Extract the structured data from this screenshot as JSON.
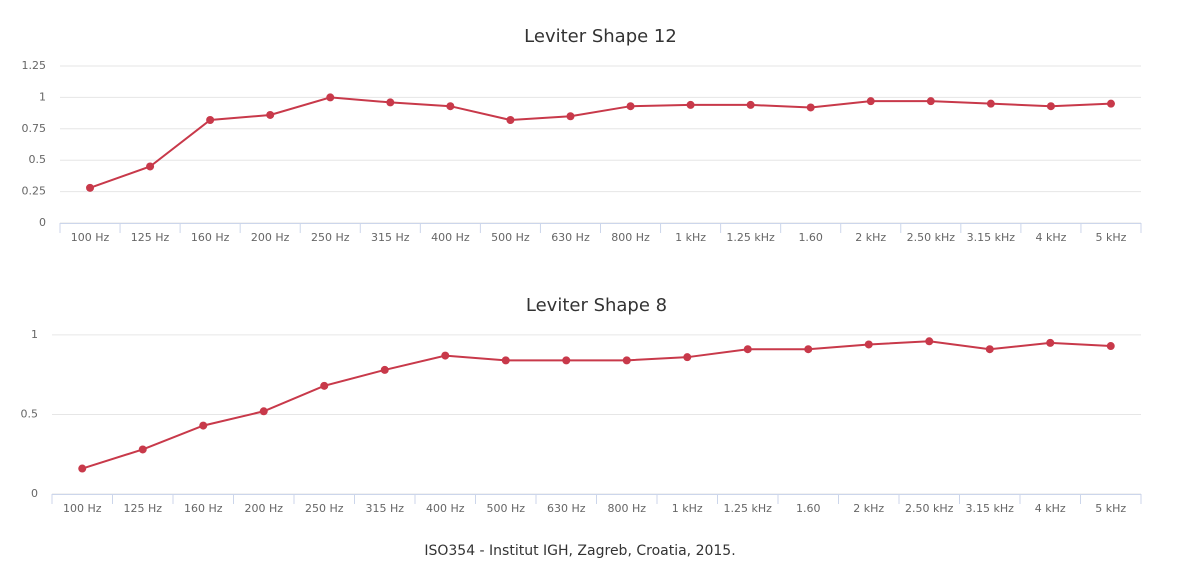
{
  "chart_data": [
    {
      "type": "line",
      "title": "Leviter Shape 12",
      "categories": [
        "100 Hz",
        "125 Hz",
        "160 Hz",
        "200 Hz",
        "250 Hz",
        "315 Hz",
        "400 Hz",
        "500 Hz",
        "630 Hz",
        "800 Hz",
        "1 kHz",
        "1.25 kHz",
        "1.60",
        "2 kHz",
        "2.50 kHz",
        "3.15 kHz",
        "4 kHz",
        "5 kHz"
      ],
      "series": [
        {
          "color": "#c8394a",
          "values": [
            0.28,
            0.45,
            0.82,
            0.86,
            1.0,
            0.96,
            0.93,
            0.82,
            0.85,
            0.93,
            0.94,
            0.94,
            0.92,
            0.97,
            0.97,
            0.95,
            0.93,
            0.95
          ]
        }
      ],
      "ylim": [
        0,
        1.25
      ],
      "yticks": [
        0,
        0.25,
        0.5,
        0.75,
        1,
        1.25
      ],
      "grid": true
    },
    {
      "type": "line",
      "title": "Leviter Shape 8",
      "categories": [
        "100 Hz",
        "125 Hz",
        "160 Hz",
        "200 Hz",
        "250 Hz",
        "315 Hz",
        "400 Hz",
        "500 Hz",
        "630 Hz",
        "800 Hz",
        "1 kHz",
        "1.25 kHz",
        "1.60",
        "2 kHz",
        "2.50 kHz",
        "3.15 kHz",
        "4 kHz",
        "5 kHz"
      ],
      "series": [
        {
          "color": "#c8394a",
          "values": [
            0.16,
            0.28,
            0.43,
            0.52,
            0.68,
            0.78,
            0.87,
            0.84,
            0.84,
            0.84,
            0.86,
            0.91,
            0.91,
            0.94,
            0.96,
            0.91,
            0.95,
            0.93
          ]
        }
      ],
      "ylim": [
        0,
        1.1
      ],
      "yticks": [
        0,
        0.5,
        1
      ],
      "grid": true
    }
  ],
  "footer": "ISO354 - Institut IGH, Zagreb, Croatia, 2015."
}
